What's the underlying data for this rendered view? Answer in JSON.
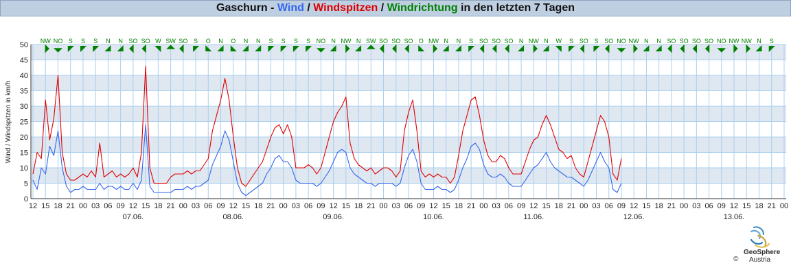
{
  "title": {
    "station": "Gaschurn",
    "sep1": " - ",
    "wind": "Wind",
    "sep2": " / ",
    "gusts": "Windspitzen",
    "sep3": " / ",
    "direction": "Windrichtung",
    "rest": " in den letzten 7 Tagen"
  },
  "colors": {
    "wind": "#3366ee",
    "gusts": "#e00000",
    "direction": "#008000",
    "title_bg": "#bfcfe2",
    "band": "#dfe7f1",
    "grid": "#a9cfee"
  },
  "chart_data": {
    "type": "line",
    "ylabel": "Wind / Windspitzen in km/h",
    "ylim": [
      0,
      50
    ],
    "yticks": [
      0,
      5,
      10,
      15,
      20,
      25,
      30,
      35,
      40,
      45,
      50
    ],
    "x_range_hours": [
      -12.5,
      168.5
    ],
    "hour_tick_labels": [
      "12",
      "15",
      "18",
      "21",
      "00",
      "03",
      "06",
      "09",
      "12",
      "15",
      "18",
      "21",
      "00",
      "03",
      "06",
      "09",
      "12",
      "15",
      "18",
      "21",
      "00",
      "03",
      "06",
      "09",
      "12",
      "15",
      "18",
      "21",
      "00",
      "03",
      "06",
      "09",
      "12",
      "15",
      "18",
      "21",
      "00",
      "03",
      "06",
      "09",
      "12",
      "15",
      "18",
      "21",
      "00",
      "03",
      "06",
      "09",
      "12",
      "15",
      "18",
      "21",
      "00",
      "03",
      "06",
      "09",
      "12",
      "15",
      "18",
      "21",
      "00"
    ],
    "date_labels": [
      {
        "label": "07.06.",
        "hour": 12
      },
      {
        "label": "08.06.",
        "hour": 36
      },
      {
        "label": "09.06.",
        "hour": 60
      },
      {
        "label": "10.06.",
        "hour": 84
      },
      {
        "label": "11.06.",
        "hour": 108
      },
      {
        "label": "12.06.",
        "hour": 132
      },
      {
        "label": "13.06.",
        "hour": 156
      }
    ],
    "series": [
      {
        "name": "Wind",
        "color": "#3366ee",
        "points": [
          [
            -12,
            6
          ],
          [
            -11,
            3
          ],
          [
            -10,
            10
          ],
          [
            -9,
            8
          ],
          [
            -8,
            17
          ],
          [
            -7,
            14
          ],
          [
            -6,
            22
          ],
          [
            -5,
            10
          ],
          [
            -4,
            4
          ],
          [
            -3,
            2
          ],
          [
            -2,
            3
          ],
          [
            -1,
            3
          ],
          [
            0,
            4
          ],
          [
            1,
            3
          ],
          [
            2,
            3
          ],
          [
            3,
            3
          ],
          [
            4,
            5
          ],
          [
            5,
            3
          ],
          [
            6,
            4
          ],
          [
            7,
            4
          ],
          [
            8,
            3
          ],
          [
            9,
            4
          ],
          [
            10,
            3
          ],
          [
            11,
            3
          ],
          [
            12,
            5
          ],
          [
            13,
            3
          ],
          [
            14,
            6
          ],
          [
            15,
            24
          ],
          [
            16,
            4
          ],
          [
            17,
            2
          ],
          [
            18,
            2
          ],
          [
            19,
            2
          ],
          [
            20,
            2
          ],
          [
            21,
            2
          ],
          [
            22,
            3
          ],
          [
            23,
            3
          ],
          [
            24,
            3
          ],
          [
            25,
            4
          ],
          [
            26,
            3
          ],
          [
            27,
            4
          ],
          [
            28,
            4
          ],
          [
            29,
            5
          ],
          [
            30,
            6
          ],
          [
            31,
            11
          ],
          [
            32,
            14
          ],
          [
            33,
            17
          ],
          [
            34,
            22
          ],
          [
            35,
            19
          ],
          [
            36,
            12
          ],
          [
            37,
            5
          ],
          [
            38,
            2
          ],
          [
            39,
            1
          ],
          [
            40,
            2
          ],
          [
            41,
            3
          ],
          [
            42,
            4
          ],
          [
            43,
            5
          ],
          [
            44,
            8
          ],
          [
            45,
            10
          ],
          [
            46,
            13
          ],
          [
            47,
            14
          ],
          [
            48,
            12
          ],
          [
            49,
            12
          ],
          [
            50,
            10
          ],
          [
            51,
            6
          ],
          [
            52,
            5
          ],
          [
            53,
            5
          ],
          [
            54,
            5
          ],
          [
            55,
            5
          ],
          [
            56,
            4
          ],
          [
            57,
            5
          ],
          [
            58,
            7
          ],
          [
            59,
            9
          ],
          [
            60,
            12
          ],
          [
            61,
            15
          ],
          [
            62,
            16
          ],
          [
            63,
            15
          ],
          [
            64,
            10
          ],
          [
            65,
            8
          ],
          [
            66,
            7
          ],
          [
            67,
            6
          ],
          [
            68,
            5
          ],
          [
            69,
            5
          ],
          [
            70,
            4
          ],
          [
            71,
            5
          ],
          [
            72,
            5
          ],
          [
            73,
            5
          ],
          [
            74,
            5
          ],
          [
            75,
            4
          ],
          [
            76,
            5
          ],
          [
            77,
            10
          ],
          [
            78,
            14
          ],
          [
            79,
            16
          ],
          [
            80,
            12
          ],
          [
            81,
            5
          ],
          [
            82,
            3
          ],
          [
            83,
            3
          ],
          [
            84,
            3
          ],
          [
            85,
            4
          ],
          [
            86,
            3
          ],
          [
            87,
            3
          ],
          [
            88,
            2
          ],
          [
            89,
            3
          ],
          [
            90,
            6
          ],
          [
            91,
            10
          ],
          [
            92,
            13
          ],
          [
            93,
            17
          ],
          [
            94,
            18
          ],
          [
            95,
            16
          ],
          [
            96,
            11
          ],
          [
            97,
            8
          ],
          [
            98,
            7
          ],
          [
            99,
            7
          ],
          [
            100,
            8
          ],
          [
            101,
            7
          ],
          [
            102,
            5
          ],
          [
            103,
            4
          ],
          [
            104,
            4
          ],
          [
            105,
            4
          ],
          [
            106,
            6
          ],
          [
            107,
            8
          ],
          [
            108,
            10
          ],
          [
            109,
            11
          ],
          [
            110,
            13
          ],
          [
            111,
            15
          ],
          [
            112,
            12
          ],
          [
            113,
            10
          ],
          [
            114,
            9
          ],
          [
            115,
            8
          ],
          [
            116,
            7
          ],
          [
            117,
            7
          ],
          [
            118,
            6
          ],
          [
            119,
            5
          ],
          [
            120,
            4
          ],
          [
            121,
            6
          ],
          [
            122,
            9
          ],
          [
            123,
            12
          ],
          [
            124,
            15
          ],
          [
            125,
            12
          ],
          [
            126,
            10
          ],
          [
            127,
            3
          ],
          [
            128,
            2
          ],
          [
            129,
            5
          ]
        ]
      },
      {
        "name": "Windspitzen",
        "color": "#e00000",
        "points": [
          [
            -12,
            8
          ],
          [
            -11,
            15
          ],
          [
            -10,
            13
          ],
          [
            -9,
            32
          ],
          [
            -8,
            19
          ],
          [
            -7,
            26
          ],
          [
            -6,
            40
          ],
          [
            -5,
            15
          ],
          [
            -4,
            8
          ],
          [
            -3,
            6
          ],
          [
            -2,
            6
          ],
          [
            -1,
            7
          ],
          [
            0,
            8
          ],
          [
            1,
            7
          ],
          [
            2,
            9
          ],
          [
            3,
            7
          ],
          [
            4,
            18
          ],
          [
            5,
            7
          ],
          [
            6,
            8
          ],
          [
            7,
            9
          ],
          [
            8,
            7
          ],
          [
            9,
            8
          ],
          [
            10,
            7
          ],
          [
            11,
            8
          ],
          [
            12,
            10
          ],
          [
            13,
            7
          ],
          [
            14,
            15
          ],
          [
            15,
            43
          ],
          [
            16,
            10
          ],
          [
            17,
            5
          ],
          [
            18,
            5
          ],
          [
            19,
            5
          ],
          [
            20,
            5
          ],
          [
            21,
            7
          ],
          [
            22,
            8
          ],
          [
            23,
            8
          ],
          [
            24,
            8
          ],
          [
            25,
            9
          ],
          [
            26,
            8
          ],
          [
            27,
            9
          ],
          [
            28,
            9
          ],
          [
            29,
            11
          ],
          [
            30,
            13
          ],
          [
            31,
            22
          ],
          [
            32,
            27
          ],
          [
            33,
            32
          ],
          [
            34,
            39
          ],
          [
            35,
            32
          ],
          [
            36,
            20
          ],
          [
            37,
            10
          ],
          [
            38,
            5
          ],
          [
            39,
            4
          ],
          [
            40,
            6
          ],
          [
            41,
            8
          ],
          [
            42,
            10
          ],
          [
            43,
            12
          ],
          [
            44,
            16
          ],
          [
            45,
            20
          ],
          [
            46,
            23
          ],
          [
            47,
            24
          ],
          [
            48,
            21
          ],
          [
            49,
            24
          ],
          [
            50,
            20
          ],
          [
            51,
            10
          ],
          [
            52,
            10
          ],
          [
            53,
            10
          ],
          [
            54,
            11
          ],
          [
            55,
            10
          ],
          [
            56,
            8
          ],
          [
            57,
            10
          ],
          [
            58,
            15
          ],
          [
            59,
            20
          ],
          [
            60,
            25
          ],
          [
            61,
            28
          ],
          [
            62,
            30
          ],
          [
            63,
            33
          ],
          [
            64,
            18
          ],
          [
            65,
            13
          ],
          [
            66,
            11
          ],
          [
            67,
            10
          ],
          [
            68,
            9
          ],
          [
            69,
            10
          ],
          [
            70,
            8
          ],
          [
            71,
            9
          ],
          [
            72,
            10
          ],
          [
            73,
            10
          ],
          [
            74,
            9
          ],
          [
            75,
            7
          ],
          [
            76,
            9
          ],
          [
            77,
            22
          ],
          [
            78,
            28
          ],
          [
            79,
            32
          ],
          [
            80,
            22
          ],
          [
            81,
            9
          ],
          [
            82,
            7
          ],
          [
            83,
            8
          ],
          [
            84,
            7
          ],
          [
            85,
            8
          ],
          [
            86,
            7
          ],
          [
            87,
            7
          ],
          [
            88,
            5
          ],
          [
            89,
            7
          ],
          [
            90,
            14
          ],
          [
            91,
            22
          ],
          [
            92,
            27
          ],
          [
            93,
            32
          ],
          [
            94,
            33
          ],
          [
            95,
            27
          ],
          [
            96,
            19
          ],
          [
            97,
            14
          ],
          [
            98,
            12
          ],
          [
            99,
            12
          ],
          [
            100,
            14
          ],
          [
            101,
            13
          ],
          [
            102,
            10
          ],
          [
            103,
            8
          ],
          [
            104,
            8
          ],
          [
            105,
            8
          ],
          [
            106,
            12
          ],
          [
            107,
            16
          ],
          [
            108,
            19
          ],
          [
            109,
            20
          ],
          [
            110,
            24
          ],
          [
            111,
            27
          ],
          [
            112,
            24
          ],
          [
            113,
            20
          ],
          [
            114,
            16
          ],
          [
            115,
            15
          ],
          [
            116,
            13
          ],
          [
            117,
            14
          ],
          [
            118,
            10
          ],
          [
            119,
            8
          ],
          [
            120,
            7
          ],
          [
            121,
            12
          ],
          [
            122,
            17
          ],
          [
            123,
            22
          ],
          [
            124,
            27
          ],
          [
            125,
            25
          ],
          [
            126,
            20
          ],
          [
            127,
            8
          ],
          [
            128,
            6
          ],
          [
            129,
            13
          ]
        ]
      }
    ],
    "direction_labels": [
      "NW",
      "NO",
      "S",
      "S",
      "S",
      "N",
      "N",
      "SO",
      "SO",
      "W",
      "SW",
      "SO",
      "S",
      "O",
      "N",
      "O",
      "N",
      "N",
      "S",
      "S",
      "S",
      "S",
      "NO",
      "N",
      "NW",
      "N",
      "SW",
      "SO",
      "SO",
      "SO",
      "O",
      "NW",
      "N",
      "N",
      "S",
      "SO",
      "SO",
      "SO",
      "N",
      "NW",
      "N",
      "W",
      "S",
      "SO",
      "S",
      "SO",
      "NO",
      "NW",
      "N",
      "N",
      "SO",
      "SO",
      "SO",
      "SO",
      "NO",
      "NW",
      "NW",
      "N",
      "S"
    ]
  },
  "logo": {
    "name": "GeoSphere",
    "sub": "Austria",
    "copyright": "©"
  }
}
